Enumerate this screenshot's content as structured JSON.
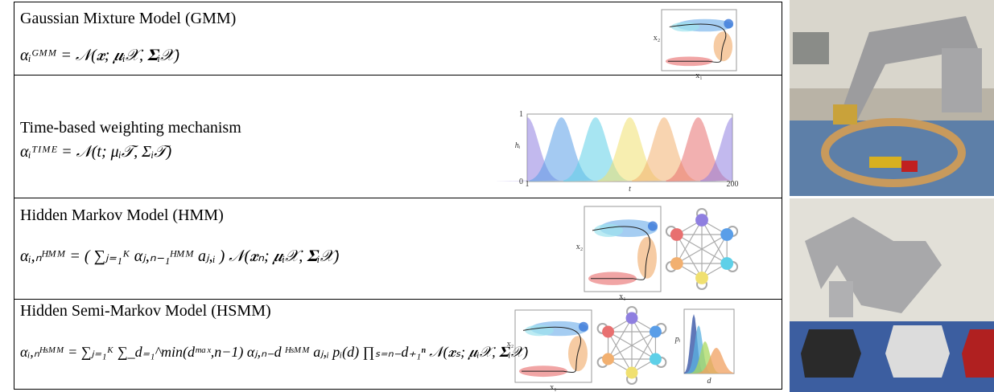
{
  "rows": [
    {
      "title": "Gaussian Mixture Model (GMM)",
      "formula": "αᵢᴳᴹᴹ = 𝒩(𝒙;  𝝁ᵢ𝒳, 𝚺ᵢ𝒳)"
    },
    {
      "title": "Time-based weighting mechanism",
      "formula": "αᵢᵀᴵᴹᴱ = 𝒩(t;  μᵢ𝒯, Σᵢ𝒯)"
    },
    {
      "title": "Hidden Markov Model (HMM)",
      "formula": "αᵢ,ₙᴴᴹᴹ = ( ∑ⱼ₌₁ᴷ αⱼ,ₙ₋₁ᴴᴹᴹ aⱼ,ᵢ ) 𝒩(𝒙ₙ;  𝝁ᵢ𝒳, 𝚺ᵢ𝒳)"
    },
    {
      "title": "Hidden Semi-Markov Model (HSMM)",
      "formula": "αᵢ,ₙᴴˢᴹᴹ = ∑ⱼ₌₁ᴷ ∑_d₌₁^min(dᵐᵃˣ,n−1) αⱼ,ₙ₋d ᴴˢᴹᴹ aⱼ,ᵢ pᵢ(d) ∏ₛ₌ₙ₋d₊₁ⁿ 𝒩(𝒙ₛ; 𝝁ᵢ𝒳, 𝚺ᵢ𝒳)"
    }
  ],
  "plots": {
    "x_axis": "x₁",
    "y_axis": "x₂",
    "time": {
      "ylabel": "hᵢ",
      "xlabel": "t",
      "x_ticks": [
        1,
        200
      ],
      "y_ticks": [
        0,
        1
      ]
    },
    "duration": {
      "ylabel": "pᵢ",
      "xlabel": "d"
    }
  }
}
